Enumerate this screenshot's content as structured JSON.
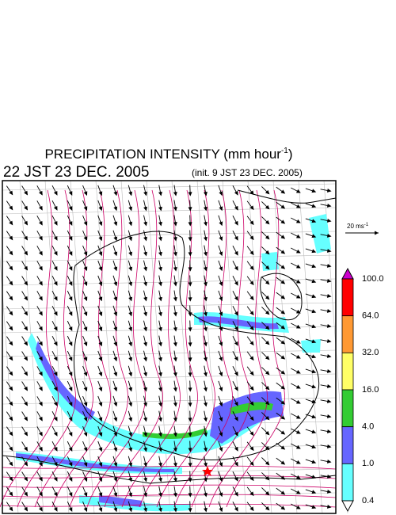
{
  "header": {
    "title": "PRECIPITATION INTENSITY (mm hour",
    "title_exponent": "-1",
    "title_close": ")",
    "valid_time": "22 JST 23 DEC. 2005",
    "init_time": "(init. 9 JST 23 DEC. 2005)"
  },
  "vector_legend": {
    "label": "20 ms",
    "exponent": "-1"
  },
  "colorbar": {
    "labels": [
      "100.0",
      "64.0",
      "32.0",
      "16.0",
      "4.0",
      "1.0",
      "0.4"
    ],
    "colors": [
      "#ff0000",
      "#ff9933",
      "#ffff66",
      "#33cc33",
      "#6666ff",
      "#66ffff"
    ],
    "over_color": "#cc00cc",
    "under_color": "#ffffff"
  }
}
